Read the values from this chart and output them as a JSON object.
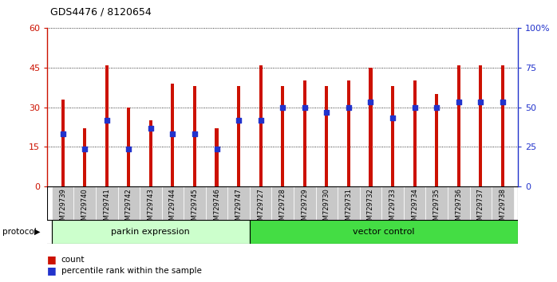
{
  "title": "GDS4476 / 8120654",
  "samples": [
    "GSM729739",
    "GSM729740",
    "GSM729741",
    "GSM729742",
    "GSM729743",
    "GSM729744",
    "GSM729745",
    "GSM729746",
    "GSM729747",
    "GSM729727",
    "GSM729728",
    "GSM729729",
    "GSM729730",
    "GSM729731",
    "GSM729732",
    "GSM729733",
    "GSM729734",
    "GSM729735",
    "GSM729736",
    "GSM729737",
    "GSM729738"
  ],
  "counts": [
    33,
    22,
    46,
    30,
    25,
    39,
    38,
    22,
    38,
    46,
    38,
    40,
    38,
    40,
    45,
    38,
    40,
    35,
    46,
    46,
    46
  ],
  "percentile_ranks_left": [
    20,
    14,
    25,
    14,
    22,
    20,
    20,
    14,
    25,
    25,
    30,
    30,
    28,
    30,
    32,
    26,
    30,
    30,
    32,
    32,
    32
  ],
  "parkin_count": 9,
  "left_yticks": [
    0,
    15,
    30,
    45,
    60
  ],
  "left_ylim": [
    0,
    60
  ],
  "right_yticks": [
    0,
    25,
    50,
    75,
    100
  ],
  "right_ylim": [
    0,
    100
  ],
  "bar_color": "#cc1100",
  "dot_color": "#2233cc",
  "parkin_bg": "#ccffcc",
  "vector_bg": "#44dd44",
  "label_bg": "#c8c8c8",
  "legend_count_label": "count",
  "legend_pct_label": "percentile rank within the sample",
  "protocol_label": "protocol",
  "parkin_label": "parkin expression",
  "vector_label": "vector control",
  "bar_width": 0.15
}
